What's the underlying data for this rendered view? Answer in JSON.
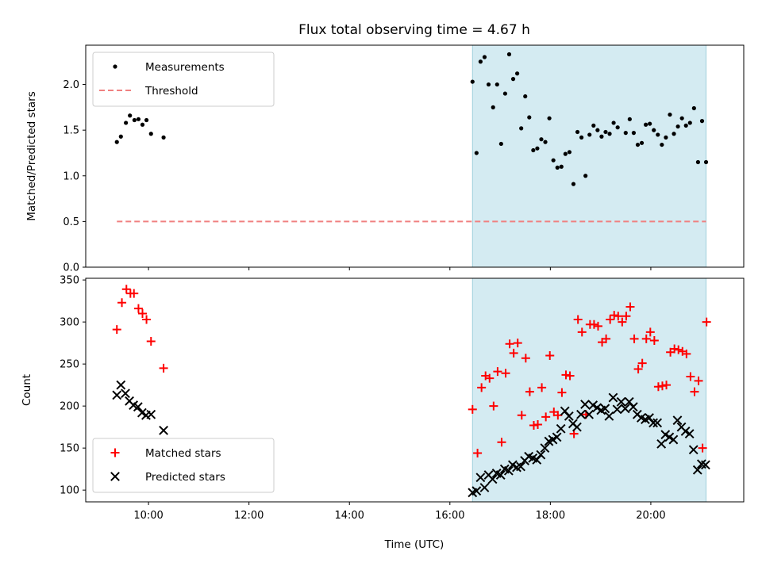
{
  "chart_data": {
    "title": "Flux total observing time = 4.67 h",
    "xlabel": "Time (UTC)",
    "x_unit": "hours UTC",
    "xlim": [
      8.75,
      21.85
    ],
    "x_ticks": [
      {
        "value": 10,
        "label": "10:00"
      },
      {
        "value": 12,
        "label": "12:00"
      },
      {
        "value": 14,
        "label": "14:00"
      },
      {
        "value": 16,
        "label": "16:00"
      },
      {
        "value": 18,
        "label": "18:00"
      },
      {
        "value": 20,
        "label": "20:00"
      }
    ],
    "shaded_region": {
      "x_start": 16.45,
      "x_end": 21.1,
      "color": "#add8e6"
    },
    "panels": [
      {
        "type": "scatter",
        "ylabel": "Matched/Predicted stars",
        "ylim": [
          0,
          2.43
        ],
        "y_ticks": [
          "0.0",
          "0.5",
          "1.0",
          "1.5",
          "2.0"
        ],
        "legend": {
          "position": "upper-left"
        },
        "series": [
          {
            "name": "Measurements",
            "marker": "dot",
            "color": "#000000",
            "x": [
              9.37,
              9.45,
              9.55,
              9.63,
              9.72,
              9.8,
              9.88,
              9.96,
              10.05,
              10.3,
              16.45,
              16.53,
              16.61,
              16.69,
              16.77,
              16.86,
              16.94,
              17.02,
              17.1,
              17.18,
              17.26,
              17.34,
              17.42,
              17.5,
              17.58,
              17.66,
              17.74,
              17.82,
              17.9,
              17.98,
              18.06,
              18.14,
              18.22,
              18.3,
              18.38,
              18.46,
              18.54,
              18.62,
              18.7,
              18.78,
              18.86,
              18.94,
              19.02,
              19.1,
              19.18,
              19.26,
              19.34,
              19.5,
              19.58,
              19.66,
              19.74,
              19.82,
              19.9,
              19.98,
              20.06,
              20.14,
              20.22,
              20.3,
              20.38,
              20.46,
              20.54,
              20.62,
              20.7,
              20.78,
              20.86,
              20.94,
              21.02,
              21.1
            ],
            "y": [
              1.37,
              1.43,
              1.58,
              1.66,
              1.61,
              1.62,
              1.56,
              1.61,
              1.46,
              1.42,
              2.03,
              1.25,
              2.25,
              2.3,
              2.0,
              1.75,
              2.0,
              1.35,
              1.9,
              2.33,
              2.06,
              2.12,
              1.52,
              1.87,
              1.64,
              1.28,
              1.3,
              1.4,
              1.37,
              1.63,
              1.17,
              1.09,
              1.1,
              1.24,
              1.26,
              0.91,
              1.48,
              1.42,
              1.0,
              1.45,
              1.55,
              1.5,
              1.43,
              1.48,
              1.46,
              1.58,
              1.53,
              1.47,
              1.62,
              1.47,
              1.34,
              1.36,
              1.56,
              1.57,
              1.5,
              1.45,
              1.34,
              1.42,
              1.67,
              1.46,
              1.54,
              1.63,
              1.55,
              1.58,
              1.74,
              1.15,
              1.6,
              1.15
            ]
          },
          {
            "name": "Threshold",
            "marker": "dashed-line",
            "color": "#f08080",
            "x": [
              9.37,
              21.1
            ],
            "y": [
              0.5,
              0.5
            ]
          }
        ]
      },
      {
        "type": "scatter",
        "ylabel": "Count",
        "ylim": [
          86,
          352
        ],
        "y_ticks": [
          "100",
          "150",
          "200",
          "250",
          "300",
          "350"
        ],
        "legend": {
          "position": "lower-left"
        },
        "series": [
          {
            "name": "Matched stars",
            "marker": "plus",
            "color": "#ff0000",
            "x": [
              9.37,
              9.47,
              9.56,
              9.64,
              9.71,
              9.8,
              9.88,
              9.96,
              10.05,
              10.3,
              16.45,
              16.55,
              16.63,
              16.71,
              16.79,
              16.87,
              16.95,
              17.03,
              17.11,
              17.19,
              17.27,
              17.35,
              17.43,
              17.51,
              17.59,
              17.67,
              17.75,
              17.83,
              17.91,
              17.99,
              18.07,
              18.15,
              18.23,
              18.31,
              18.39,
              18.47,
              18.55,
              18.63,
              18.71,
              18.79,
              18.87,
              18.95,
              19.03,
              19.11,
              19.19,
              19.27,
              19.35,
              19.43,
              19.51,
              19.59,
              19.67,
              19.75,
              19.83,
              19.91,
              19.99,
              20.07,
              20.15,
              20.23,
              20.31,
              20.39,
              20.47,
              20.55,
              20.63,
              20.71,
              20.79,
              20.87,
              20.95,
              21.03,
              21.11
            ],
            "y": [
              291,
              323,
              339,
              334,
              334,
              316,
              310,
              303,
              277,
              245,
              196,
              144,
              222,
              236,
              233,
              200,
              241,
              157,
              239,
              274,
              263,
              275,
              189,
              257,
              217,
              177,
              178,
              222,
              187,
              260,
              193,
              189,
              216,
              237,
              236,
              167,
              303,
              288,
              190,
              297,
              297,
              295,
              276,
              280,
              303,
              308,
              307,
              300,
              307,
              318,
              280,
              244,
              251,
              280,
              288,
              278,
              223,
              224,
              225,
              264,
              268,
              267,
              265,
              262,
              235,
              217,
              230,
              150,
              300
            ]
          },
          {
            "name": "Predicted stars",
            "marker": "x",
            "color": "#000000",
            "x": [
              9.37,
              9.45,
              9.54,
              9.62,
              9.7,
              9.79,
              9.87,
              9.95,
              10.05,
              10.3,
              16.45,
              16.53,
              16.61,
              16.69,
              16.77,
              16.85,
              16.93,
              17.01,
              17.09,
              17.17,
              17.25,
              17.33,
              17.41,
              17.49,
              17.57,
              17.65,
              17.73,
              17.81,
              17.89,
              17.97,
              18.05,
              18.13,
              18.21,
              18.29,
              18.37,
              18.45,
              18.53,
              18.61,
              18.69,
              18.77,
              18.85,
              18.93,
              19.01,
              19.09,
              19.17,
              19.25,
              19.33,
              19.41,
              19.49,
              19.57,
              19.65,
              19.73,
              19.81,
              19.89,
              19.97,
              20.05,
              20.13,
              20.21,
              20.29,
              20.37,
              20.45,
              20.53,
              20.61,
              20.69,
              20.77,
              20.85,
              20.93,
              21.01,
              21.09
            ],
            "y": [
              213,
              225,
              215,
              206,
              201,
              199,
              192,
              189,
              190,
              171,
              97,
              99,
              115,
              103,
              118,
              113,
              120,
              118,
              125,
              123,
              130,
              127,
              128,
              135,
              140,
              138,
              136,
              142,
              150,
              158,
              160,
              163,
              173,
              194,
              188,
              179,
              175,
              190,
              202,
              190,
              201,
              198,
              195,
              197,
              188,
              210,
              196,
              205,
              197,
              205,
              199,
              190,
              186,
              184,
              186,
              180,
              180,
              155,
              166,
              163,
              160,
              183,
              175,
              170,
              167,
              148,
              124,
              131,
              130
            ]
          }
        ]
      }
    ]
  }
}
